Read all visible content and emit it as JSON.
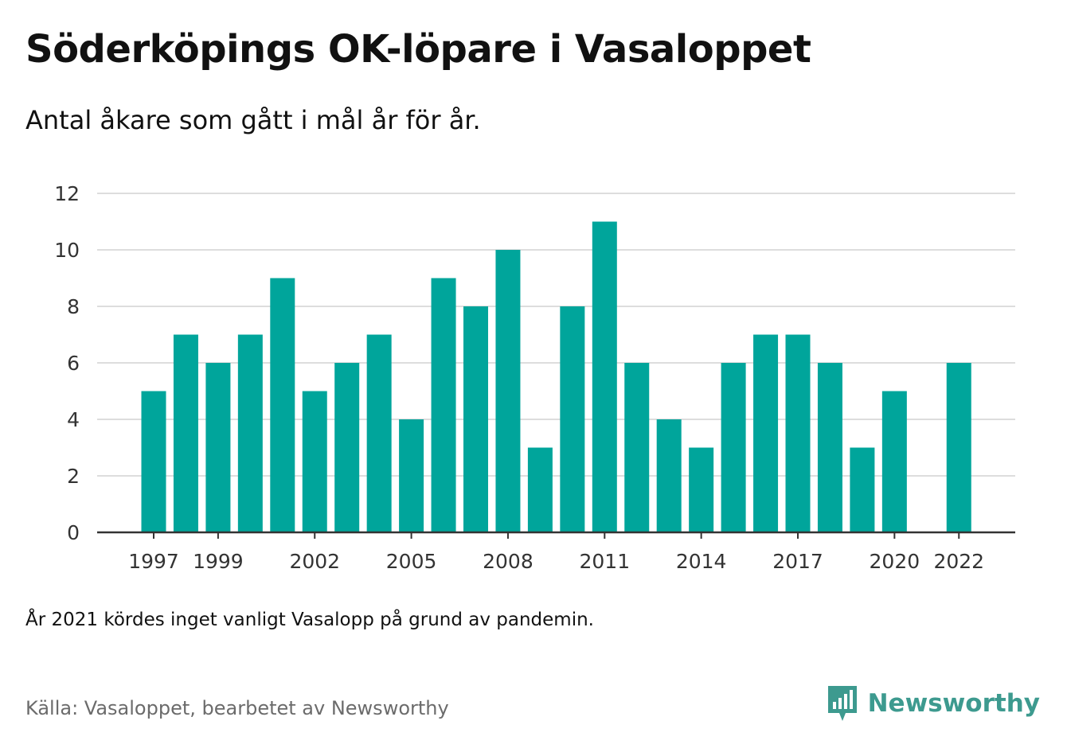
{
  "header": {
    "title": "Söderköpings OK-löpare i Vasaloppet",
    "subtitle": "Antal åkare som gått i mål år för år."
  },
  "footer": {
    "note": "År 2021 kördes inget vanligt Vasalopp på grund av pandemin.",
    "source": "Källa: Vasaloppet, bearbetet av Newsworthy",
    "brand_name": "Newsworthy",
    "brand_icon": "bar-chart-logo-icon",
    "brand_color": "#3d9a8f"
  },
  "chart_data": {
    "type": "bar",
    "categories": [
      "1997",
      "1998",
      "1999",
      "2000",
      "2001",
      "2002",
      "2003",
      "2004",
      "2005",
      "2006",
      "2007",
      "2008",
      "2009",
      "2010",
      "2011",
      "2012",
      "2013",
      "2014",
      "2015",
      "2016",
      "2017",
      "2018",
      "2019",
      "2020",
      "2021",
      "2022"
    ],
    "values": [
      5,
      7,
      6,
      7,
      9,
      5,
      6,
      7,
      4,
      9,
      8,
      10,
      3,
      8,
      11,
      6,
      4,
      3,
      6,
      7,
      7,
      6,
      3,
      5,
      null,
      6
    ],
    "x_tick_labels": [
      "1997",
      "1999",
      "2002",
      "2005",
      "2008",
      "2011",
      "2014",
      "2017",
      "2020",
      "2022"
    ],
    "y_ticks": [
      0,
      2,
      4,
      6,
      8,
      10,
      12
    ],
    "ylim": [
      0,
      12
    ],
    "grid": true,
    "bar_color": "#00a59b",
    "title": "",
    "xlabel": "",
    "ylabel": ""
  }
}
